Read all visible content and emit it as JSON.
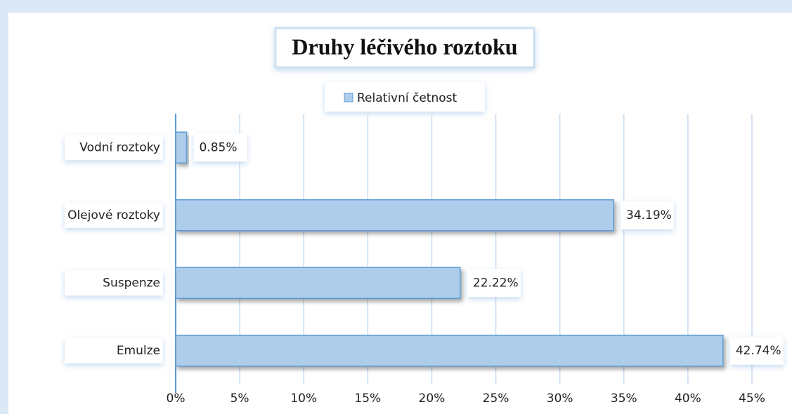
{
  "chart_data": {
    "type": "hbar",
    "title": "Druhy léčivého roztoku",
    "categories": [
      "Vodní roztoky",
      "Olejové roztoky",
      "Suspenze",
      "Emulze"
    ],
    "series": [
      {
        "name": "Relativní četnost",
        "color": "#aecdeb",
        "values": [
          0.85,
          34.19,
          22.22,
          42.74
        ],
        "value_labels": [
          "0.85%",
          "34.19%",
          "22.22%",
          "42.74%"
        ]
      }
    ],
    "xlim": [
      0,
      45
    ],
    "xticks": [
      {
        "value": 0,
        "label": "0%"
      },
      {
        "value": 5,
        "label": "5%"
      },
      {
        "value": 10,
        "label": "10%"
      },
      {
        "value": 15,
        "label": "15%"
      },
      {
        "value": 20,
        "label": "20%"
      },
      {
        "value": 25,
        "label": "25%"
      },
      {
        "value": 30,
        "label": "30%"
      },
      {
        "value": 35,
        "label": "35%"
      },
      {
        "value": 40,
        "label": "40%"
      },
      {
        "value": 45,
        "label": "45%"
      }
    ],
    "grid": true,
    "legend": "top"
  }
}
